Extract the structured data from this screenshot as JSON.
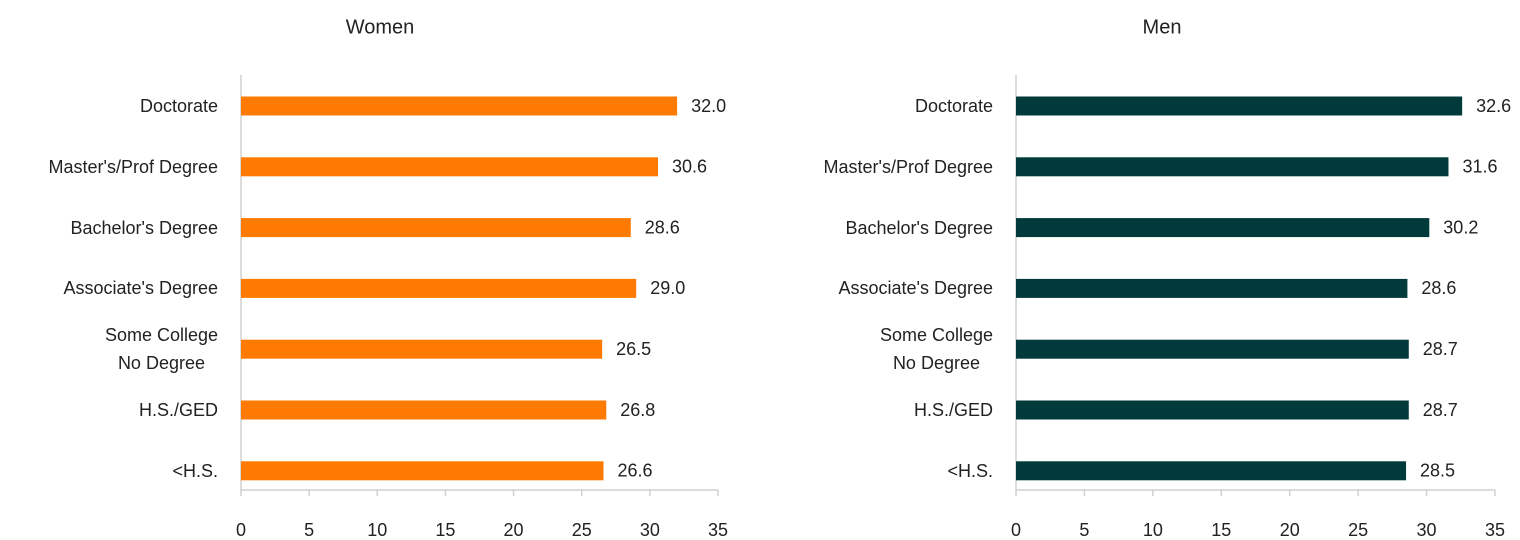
{
  "chart_data": [
    {
      "type": "bar",
      "orientation": "horizontal",
      "title": "Women",
      "categories": [
        "Doctorate",
        "Master's/Prof Degree",
        "Bachelor's Degree",
        "Associate's Degree",
        "Some College\nNo Degree",
        "H.S./GED",
        "<H.S."
      ],
      "values": [
        32.0,
        30.6,
        28.6,
        29.0,
        26.5,
        26.8,
        26.6
      ],
      "value_labels": [
        "32.0",
        "30.6",
        "28.6",
        "29.0",
        "26.5",
        "26.8",
        "26.6"
      ],
      "color": "#ff7a00",
      "xlim": [
        0,
        35
      ],
      "xticks": [
        0,
        5,
        10,
        15,
        20,
        25,
        30,
        35
      ],
      "grid": false
    },
    {
      "type": "bar",
      "orientation": "horizontal",
      "title": "Men",
      "categories": [
        "Doctorate",
        "Master's/Prof Degree",
        "Bachelor's Degree",
        "Associate's Degree",
        "Some College\nNo Degree",
        "H.S./GED",
        "<H.S."
      ],
      "values": [
        32.6,
        31.6,
        30.2,
        28.6,
        28.7,
        28.7,
        28.5
      ],
      "value_labels": [
        "32.6",
        "31.6",
        "30.2",
        "28.6",
        "28.7",
        "28.7",
        "28.5"
      ],
      "color": "#003a3a",
      "xlim": [
        0,
        35
      ],
      "xticks": [
        0,
        5,
        10,
        15,
        20,
        25,
        30,
        35
      ],
      "grid": false
    }
  ]
}
